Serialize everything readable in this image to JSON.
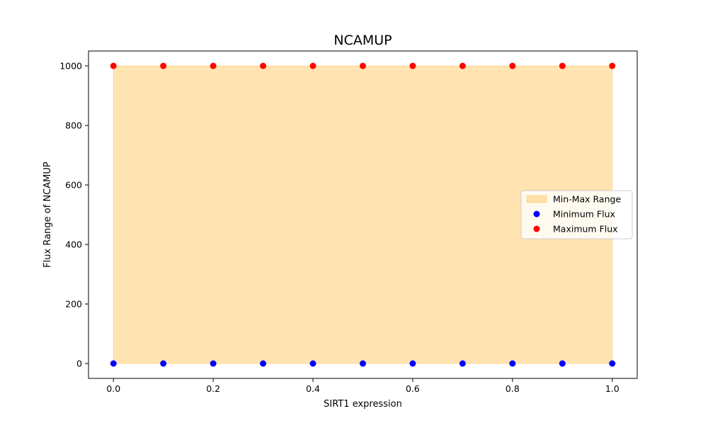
{
  "chart_data": {
    "type": "scatter",
    "title": "NCAMUP",
    "xlabel": "SIRT1 expression",
    "ylabel": "Flux Range of NCAMUP",
    "x": [
      0.0,
      0.1,
      0.2,
      0.3,
      0.4,
      0.5,
      0.6,
      0.7,
      0.8,
      0.9,
      1.0
    ],
    "series": [
      {
        "name": "Minimum Flux",
        "kind": "scatter",
        "color": "#0000ff",
        "values": [
          0,
          0,
          0,
          0,
          0,
          0,
          0,
          0,
          0,
          0,
          0
        ]
      },
      {
        "name": "Maximum Flux",
        "kind": "scatter",
        "color": "#ff0000",
        "values": [
          1000,
          1000,
          1000,
          1000,
          1000,
          1000,
          1000,
          1000,
          1000,
          1000,
          1000
        ]
      }
    ],
    "range_band": {
      "name": "Min-Max Range",
      "color": "#ffa500",
      "opacity": 0.3,
      "lower_series": "Minimum Flux",
      "upper_series": "Maximum Flux"
    },
    "xlim": [
      -0.05,
      1.05
    ],
    "ylim": [
      -50,
      1050
    ],
    "xticks": [
      0.0,
      0.2,
      0.4,
      0.6,
      0.8,
      1.0
    ],
    "xtick_labels": [
      "0.0",
      "0.2",
      "0.4",
      "0.6",
      "0.8",
      "1.0"
    ],
    "yticks": [
      0,
      200,
      400,
      600,
      800,
      1000
    ],
    "ytick_labels": [
      "0",
      "200",
      "400",
      "600",
      "800",
      "1000"
    ],
    "grid": false,
    "legend_position": "center-right",
    "legend": [
      "Min-Max Range",
      "Minimum Flux",
      "Maximum Flux"
    ]
  }
}
